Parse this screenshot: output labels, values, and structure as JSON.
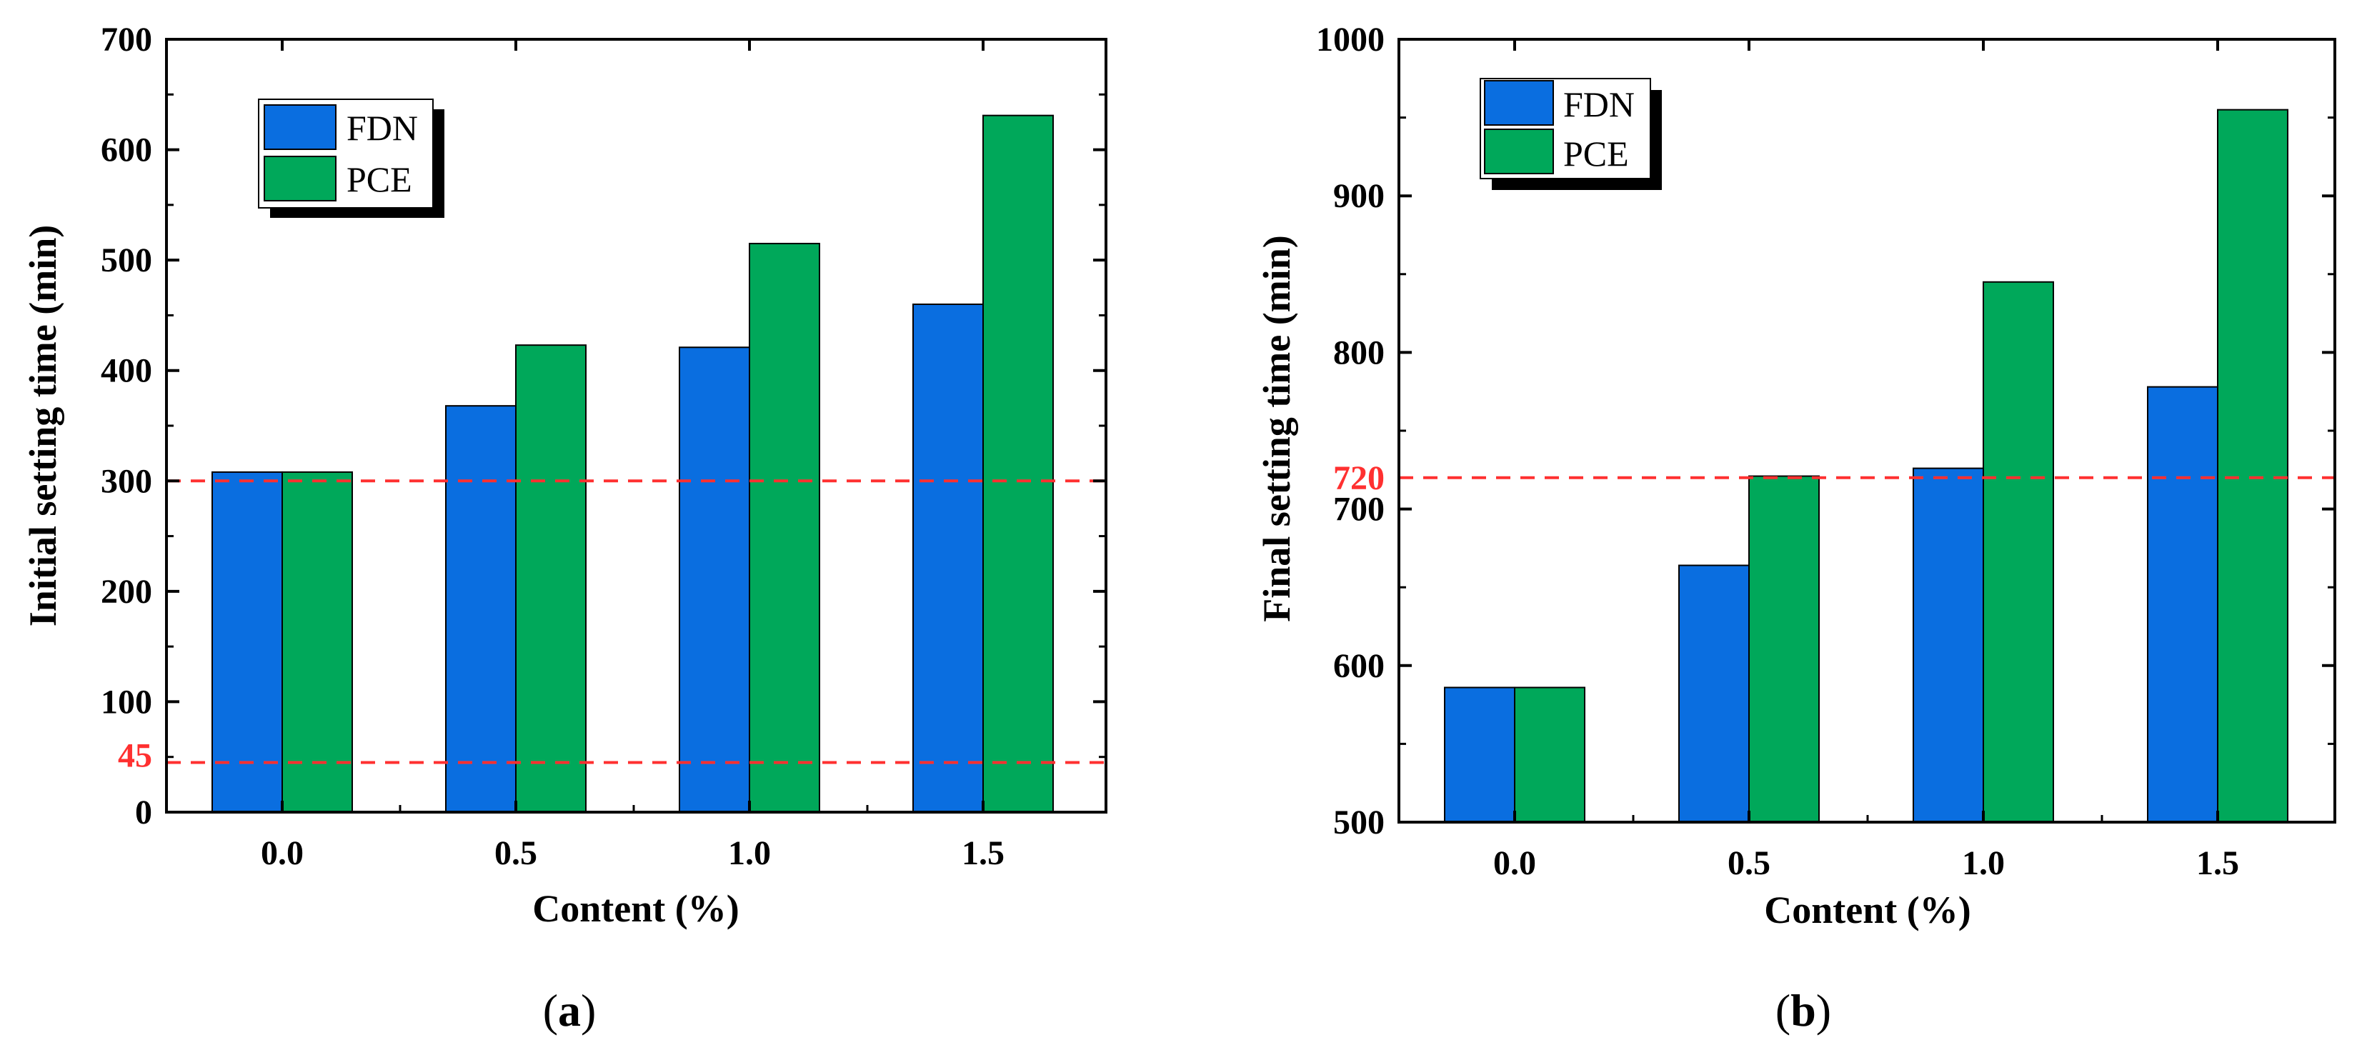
{
  "colors": {
    "FDN": "#0a6ee0",
    "PCE": "#00a85a",
    "reference_line": "#ff3030",
    "axis": "#000000"
  },
  "chart_data": [
    {
      "type": "bar",
      "panel_label_prefix": "(",
      "panel_label": "a",
      "panel_label_suffix": ")",
      "categories": [
        "0.0",
        "0.5",
        "1.0",
        "1.5"
      ],
      "series": [
        {
          "name": "FDN",
          "values": [
            308,
            368,
            421,
            460
          ]
        },
        {
          "name": "PCE",
          "values": [
            308,
            423,
            515,
            631
          ]
        }
      ],
      "xlabel": "Content (%)",
      "ylabel": "Initial setting time (min)",
      "ylim": [
        0,
        700
      ],
      "yticks": [
        "0",
        "100",
        "200",
        "300",
        "400",
        "500",
        "600",
        "700"
      ],
      "reference_lines": [
        {
          "value": 300,
          "label": ""
        },
        {
          "value": 45,
          "label": "45"
        }
      ],
      "legend_position": "top-left",
      "grid": false
    },
    {
      "type": "bar",
      "panel_label_prefix": "(",
      "panel_label": "b",
      "panel_label_suffix": ")",
      "categories": [
        "0.0",
        "0.5",
        "1.0",
        "1.5"
      ],
      "series": [
        {
          "name": "FDN",
          "values": [
            586,
            664,
            726,
            778
          ]
        },
        {
          "name": "PCE",
          "values": [
            586,
            721,
            845,
            955
          ]
        }
      ],
      "xlabel": "Content (%)",
      "ylabel": "Final setting time (min)",
      "ylim": [
        500,
        1000
      ],
      "yticks": [
        "500",
        "600",
        "700",
        "800",
        "900",
        "1000"
      ],
      "reference_lines": [
        {
          "value": 720,
          "label": "720"
        }
      ],
      "legend_position": "top-left",
      "grid": false
    }
  ]
}
